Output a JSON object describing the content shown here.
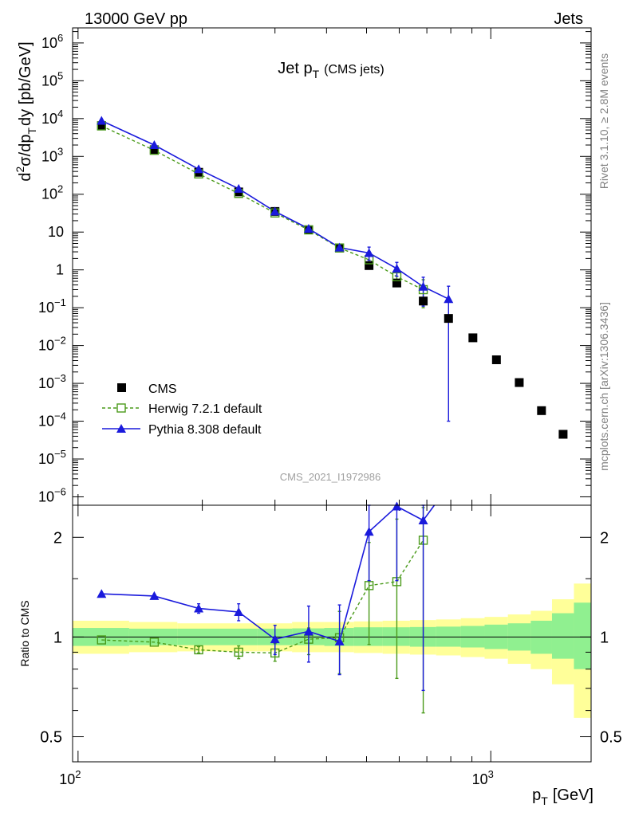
{
  "header": {
    "left": "13000 GeV pp",
    "right": "Jets"
  },
  "side_labels": {
    "rivet": "Rivet 3.1.10, ≥ 2.8M events",
    "mcplots": "mcplots.cern.ch [arXiv:1306.3436]"
  },
  "chart_data": [
    {
      "type": "scatter",
      "title_main": "Jet p",
      "title_sub": "T",
      "title_suffix": "(CMS jets)",
      "watermark": "CMS_2021_I1972986",
      "ylabel": "d²σ/dp_T dy [pb/GeV]",
      "ylabel_parts": {
        "a": "d",
        "b": "2",
        "c": "σ/dp",
        "d": "T",
        "e": "dy [pb/GeV]"
      },
      "yscale": "log",
      "ylim": [
        6e-07,
        2500000.0
      ],
      "xscale": "log",
      "xlim": [
        97,
        1750
      ],
      "yticks": [
        {
          "v": 1000000.0,
          "base": "10",
          "exp": "6"
        },
        {
          "v": 100000.0,
          "base": "10",
          "exp": "5"
        },
        {
          "v": 10000.0,
          "base": "10",
          "exp": "4"
        },
        {
          "v": 1000.0,
          "base": "10",
          "exp": "3"
        },
        {
          "v": 100.0,
          "base": "10",
          "exp": "2"
        },
        {
          "v": 10,
          "base": "10",
          "exp": ""
        },
        {
          "v": 1,
          "base": "1",
          "exp": ""
        },
        {
          "v": 0.1,
          "base": "10",
          "exp": "−1"
        },
        {
          "v": 0.01,
          "base": "10",
          "exp": "−2"
        },
        {
          "v": 0.001,
          "base": "10",
          "exp": "−3"
        },
        {
          "v": 0.0001,
          "base": "10",
          "exp": "−4"
        },
        {
          "v": 1e-05,
          "base": "10",
          "exp": "−5"
        },
        {
          "v": 1e-06,
          "base": "10",
          "exp": "−6"
        }
      ],
      "legend_position": "lower-left",
      "series": [
        {
          "name": "CMS",
          "style": "black-square",
          "color": "#000000",
          "x": [
            114,
            153,
            196,
            245,
            300,
            362,
            430,
            507,
            592,
            686,
            790,
            905,
            1032,
            1172,
            1327,
            1497
          ],
          "y": [
            6500,
            1500,
            380,
            115,
            35,
            11.5,
            3.8,
            1.3,
            0.45,
            0.15,
            0.052,
            0.016,
            0.0042,
            0.00105,
            0.00019,
            4.5e-05
          ]
        },
        {
          "name": "Herwig 7.2.1 default",
          "style": "green-open-square-dashed",
          "color": "#4a9a1a",
          "x": [
            114,
            153,
            196,
            245,
            300,
            362,
            430,
            507,
            592,
            686
          ],
          "y": [
            6400,
            1450,
            345,
            105,
            32,
            11.4,
            3.8,
            1.85,
            0.66,
            0.3
          ],
          "err_up": [
            0,
            0,
            0,
            0,
            0,
            0,
            0.3,
            0.5,
            0.35,
            0.25
          ],
          "err_dn": [
            0,
            0,
            0,
            0,
            0,
            0,
            0.3,
            0.5,
            0.3,
            0.2
          ]
        },
        {
          "name": "Pythia 8.308 default",
          "style": "blue-triangle-solid",
          "color": "#1a1adc",
          "x": [
            114,
            153,
            196,
            245,
            300,
            362,
            430,
            507,
            592,
            686,
            790
          ],
          "y": [
            8800,
            2000,
            460,
            140,
            35,
            12.3,
            3.9,
            2.8,
            1.08,
            0.36,
            0.17
          ],
          "err_up": [
            0,
            0,
            0,
            0,
            3,
            1.5,
            0.6,
            1.2,
            0.5,
            0.28,
            0.2
          ],
          "err_dn": [
            0,
            0,
            0,
            0,
            3,
            1.5,
            0.6,
            1.0,
            0.4,
            0.25,
            0.1699
          ]
        }
      ]
    },
    {
      "type": "line",
      "ylabel": "Ratio to CMS",
      "xlabel_main": "p",
      "xlabel_sub": "T",
      "xlabel_suffix": "[GeV]",
      "yscale": "log",
      "ylim": [
        0.42,
        2.5
      ],
      "xscale": "log",
      "xlim": [
        97,
        1750
      ],
      "yticks": [
        {
          "v": 2,
          "label": "2"
        },
        {
          "v": 1,
          "label": "1"
        },
        {
          "v": 0.5,
          "label": "0.5"
        }
      ],
      "xticks": [
        {
          "v": 100,
          "base": "10",
          "exp": "2"
        },
        {
          "v": 1000,
          "base": "10",
          "exp": "3"
        }
      ],
      "bands": {
        "edges": [
          97,
          133,
          174,
          220,
          272,
          330,
          395,
          466,
          547,
          637,
          737,
          846,
          966,
          1100,
          1250,
          1407,
          1590,
          1750
        ],
        "green_up": [
          1.065,
          1.06,
          1.06,
          1.06,
          1.06,
          1.062,
          1.065,
          1.07,
          1.07,
          1.072,
          1.075,
          1.08,
          1.09,
          1.1,
          1.12,
          1.18,
          1.27
        ],
        "green_dn": [
          0.94,
          0.945,
          0.945,
          0.945,
          0.945,
          0.945,
          0.94,
          0.94,
          0.94,
          0.935,
          0.935,
          0.93,
          0.92,
          0.91,
          0.89,
          0.86,
          0.8
        ],
        "yellow_up": [
          1.12,
          1.11,
          1.1,
          1.1,
          1.1,
          1.11,
          1.11,
          1.115,
          1.12,
          1.125,
          1.13,
          1.14,
          1.15,
          1.17,
          1.2,
          1.3,
          1.45
        ],
        "yellow_dn": [
          0.89,
          0.9,
          0.905,
          0.905,
          0.905,
          0.9,
          0.9,
          0.895,
          0.89,
          0.885,
          0.88,
          0.87,
          0.86,
          0.83,
          0.8,
          0.72,
          0.57
        ]
      },
      "series": [
        {
          "name": "Herwig 7.2.1 default",
          "color": "#4a9a1a",
          "x": [
            114,
            153,
            196,
            245,
            300,
            362,
            430,
            507,
            592,
            686
          ],
          "y": [
            0.98,
            0.965,
            0.915,
            0.9,
            0.895,
            0.985,
            0.995,
            1.43,
            1.47,
            1.96
          ],
          "err_up": [
            0,
            0,
            0.02,
            0.04,
            0.06,
            0.08,
            0.2,
            0.5,
            0.8,
            0.5
          ],
          "err_dn": [
            0,
            0,
            0.02,
            0.04,
            0.05,
            0.1,
            0.22,
            0.48,
            0.72,
            1.37
          ]
        },
        {
          "name": "Pythia 8.308 default",
          "color": "#1a1adc",
          "x": [
            114,
            153,
            196,
            245,
            300,
            362,
            430,
            507,
            592,
            686,
            730
          ],
          "y": [
            1.35,
            1.33,
            1.22,
            1.19,
            0.985,
            1.04,
            0.97,
            2.08,
            2.48,
            2.25,
            2.5
          ],
          "err_up": [
            0,
            0,
            0.04,
            0.07,
            0.1,
            0.2,
            0.28,
            0.6,
            0.3,
            0.3,
            0
          ],
          "err_dn": [
            0,
            0,
            0.04,
            0.07,
            0.1,
            0.2,
            0.2,
            0.6,
            1.0,
            1.56,
            0
          ]
        }
      ]
    }
  ]
}
